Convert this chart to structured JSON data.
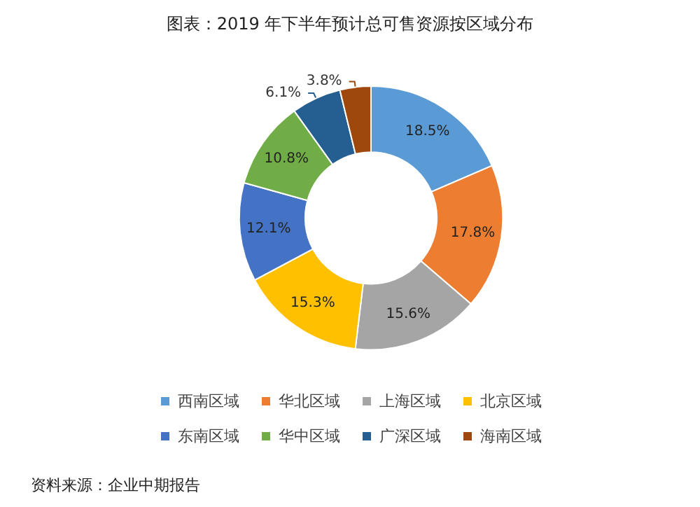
{
  "chart_data": {
    "type": "donut",
    "title": "图表：2019 年下半年预计总可售资源按区域分布",
    "categories": [
      "西南区域",
      "华北区域",
      "上海区域",
      "北京区域",
      "东南区域",
      "华中区域",
      "广深区域",
      "海南区域"
    ],
    "values": [
      18.5,
      17.8,
      15.6,
      15.3,
      12.1,
      10.8,
      6.1,
      3.8
    ],
    "value_labels": [
      "18.5%",
      "17.8%",
      "15.6%",
      "15.3%",
      "12.1%",
      "10.8%",
      "6.1%",
      "3.8%"
    ],
    "colors": [
      "#5b9bd5",
      "#ed7d31",
      "#a5a5a5",
      "#ffc000",
      "#4472c4",
      "#70ad47",
      "#255e91",
      "#9e480e"
    ],
    "legend": "bottom",
    "annotations": [
      "资料来源：企业中期报告"
    ]
  }
}
